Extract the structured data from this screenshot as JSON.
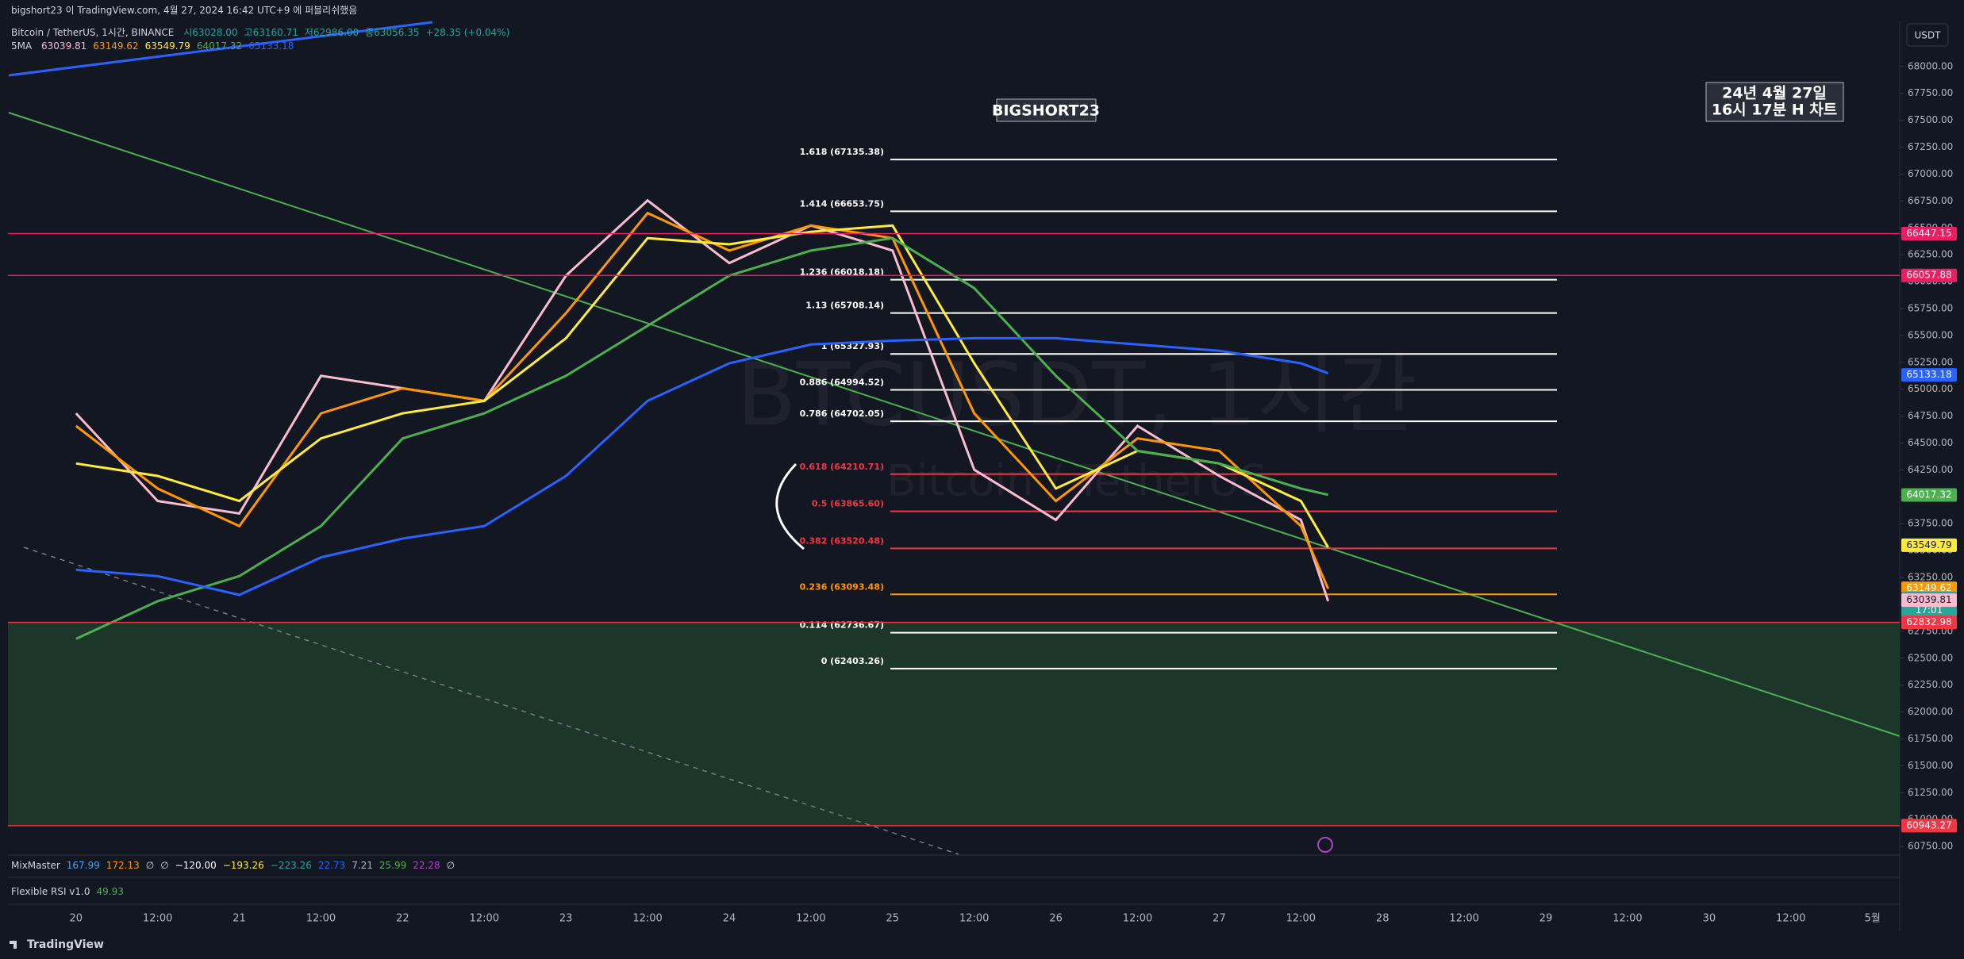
{
  "header": {
    "text": "bigshort23 이 TradingView.com, 4월 27, 2024 16:42 UTC+9 에 퍼블리쉬했음"
  },
  "legend": {
    "symbol": "Bitcoin / TetherUS, 1시간, BINANCE",
    "ohlc": [
      "시63028.00",
      "고63160.71",
      "저62986.00",
      "종63056.35"
    ],
    "change": "+28.35 (+0.04%)",
    "ma_name": "5MA"
  },
  "currency": "USDT",
  "chart_data": {
    "type": "line",
    "x": [
      0,
      12,
      24,
      36,
      48,
      60,
      72,
      84,
      96,
      108,
      120,
      132,
      144,
      156,
      168,
      180,
      184
    ],
    "xlim": [
      -10,
      268
    ],
    "xticks": [
      {
        "value": 0,
        "label": "20"
      },
      {
        "value": 12,
        "label": "12:00"
      },
      {
        "value": 24,
        "label": "21"
      },
      {
        "value": 36,
        "label": "12:00"
      },
      {
        "value": 48,
        "label": "22"
      },
      {
        "value": 60,
        "label": "12:00"
      },
      {
        "value": 72,
        "label": "23"
      },
      {
        "value": 84,
        "label": "12:00"
      },
      {
        "value": 96,
        "label": "24"
      },
      {
        "value": 108,
        "label": "12:00"
      },
      {
        "value": 120,
        "label": "25"
      },
      {
        "value": 132,
        "label": "12:00"
      },
      {
        "value": 144,
        "label": "26"
      },
      {
        "value": 156,
        "label": "12:00"
      },
      {
        "value": 168,
        "label": "27"
      },
      {
        "value": 180,
        "label": "12:00"
      },
      {
        "value": 192,
        "label": "28"
      },
      {
        "value": 204,
        "label": "12:00"
      },
      {
        "value": 216,
        "label": "29"
      },
      {
        "value": 228,
        "label": "12:00"
      },
      {
        "value": 240,
        "label": "30"
      },
      {
        "value": 252,
        "label": "12:00"
      },
      {
        "value": 264,
        "label": "5월"
      }
    ],
    "ylim": [
      60692,
      68419
    ],
    "yticks": [
      {
        "value": 68000,
        "label": "68000.00"
      },
      {
        "value": 67750,
        "label": "67750.00"
      },
      {
        "value": 67500,
        "label": "67500.00"
      },
      {
        "value": 67250,
        "label": "67250.00"
      },
      {
        "value": 67000,
        "label": "67000.00"
      },
      {
        "value": 66750,
        "label": "66750.00"
      },
      {
        "value": 66500,
        "label": "66500.00"
      },
      {
        "value": 66250,
        "label": "66250.00"
      },
      {
        "value": 66000,
        "label": "66000.00"
      },
      {
        "value": 65750,
        "label": "65750.00"
      },
      {
        "value": 65500,
        "label": "65500.00"
      },
      {
        "value": 65250,
        "label": "65250.00"
      },
      {
        "value": 65000,
        "label": "65000.00"
      },
      {
        "value": 64750,
        "label": "64750.00"
      },
      {
        "value": 64500,
        "label": "64500.00"
      },
      {
        "value": 64250,
        "label": "64250.00"
      },
      {
        "value": 64000,
        "label": "64000.00"
      },
      {
        "value": 63750,
        "label": "63750.00"
      },
      {
        "value": 63500,
        "label": "63500.00"
      },
      {
        "value": 63250,
        "label": "63250.00"
      },
      {
        "value": 63000,
        "label": "63000.00"
      },
      {
        "value": 62750,
        "label": "62750.00"
      },
      {
        "value": 62500,
        "label": "62500.00"
      },
      {
        "value": 62250,
        "label": "62250.00"
      },
      {
        "value": 62000,
        "label": "62000.00"
      },
      {
        "value": 61750,
        "label": "61750.00"
      },
      {
        "value": 61500,
        "label": "61500.00"
      },
      {
        "value": 61250,
        "label": "61250.00"
      },
      {
        "value": 61000,
        "label": "61000.00"
      },
      {
        "value": 60750,
        "label": "60750.00"
      }
    ],
    "series": [
      {
        "color": "#f8bbd0",
        "legend_value": 63039.81,
        "values": [
          64776,
          63961,
          63845,
          65125,
          65009,
          64892,
          66056,
          66755,
          66173,
          66522,
          66289,
          64252,
          63786,
          64659,
          64194,
          63786,
          63030
        ]
      },
      {
        "color": "#ff9800",
        "legend_value": 63149.62,
        "values": [
          64659,
          64077,
          63728,
          64776,
          65009,
          64892,
          65707,
          66638,
          66289,
          66522,
          66405,
          64776,
          63961,
          64543,
          64427,
          63728,
          63146
        ]
      },
      {
        "color": "#ffeb3b",
        "legend_value": 63549.79,
        "values": [
          64310,
          64194,
          63961,
          64543,
          64776,
          64892,
          65474,
          66405,
          66347,
          66464,
          66522,
          65241,
          64077,
          64427,
          64310,
          63961,
          63530
        ]
      },
      {
        "color": "#4caf50",
        "legend_value": 64017.32,
        "values": [
          62680,
          63030,
          63263,
          63728,
          64543,
          64776,
          65125,
          65590,
          66056,
          66289,
          66405,
          65940,
          65125,
          64427,
          64310,
          64077,
          64019
        ]
      },
      {
        "color": "#2962ff",
        "legend_value": 65133.18,
        "values": [
          63321,
          63263,
          63088,
          63437,
          63612,
          63728,
          64194,
          64892,
          65241,
          65416,
          65451,
          65474,
          65474,
          65416,
          65358,
          65241,
          65148
        ]
      }
    ]
  },
  "fib_levels": [
    {
      "label": "1.618 (67135.38)",
      "value": 67135.38,
      "color": "#ffffff"
    },
    {
      "label": "1.414 (66653.75)",
      "value": 66653.75,
      "color": "#ffffff"
    },
    {
      "label": "1.236 (66018.18)",
      "value": 66018.18,
      "color": "#ffffff"
    },
    {
      "label": "1.13 (65708.14)",
      "value": 65708.14,
      "color": "#ffffff"
    },
    {
      "label": "1 (65327.93)",
      "value": 65327.93,
      "color": "#ffffff"
    },
    {
      "label": "0.886 (64994.52)",
      "value": 64994.52,
      "color": "#ffffff"
    },
    {
      "label": "0.786 (64702.05)",
      "value": 64702.05,
      "color": "#ffffff"
    },
    {
      "label": "0.618 (64210.71)",
      "value": 64210.71,
      "color": "#f23645"
    },
    {
      "label": "0.5 (63865.60)",
      "value": 63865.6,
      "color": "#f23645"
    },
    {
      "label": "0.382 (63520.48)",
      "value": 63520.48,
      "color": "#f23645"
    },
    {
      "label": "0.236 (63093.48)",
      "value": 63093.48,
      "color": "#ff9800"
    },
    {
      "label": "0.114 (62736.67)",
      "value": 62736.67,
      "color": "#ffffff"
    },
    {
      "label": "0 (62403.26)",
      "value": 62403.26,
      "color": "#ffffff"
    }
  ],
  "price_lines": [
    {
      "value": 66447.15,
      "color": "#e91e63",
      "line": true
    },
    {
      "value": 66057.88,
      "color": "#e91e63",
      "line": true
    },
    {
      "value": 65133.18,
      "color": "#2962ff",
      "line": false
    },
    {
      "value": 64017.32,
      "color": "#4caf50",
      "line": false
    },
    {
      "value": 63549.79,
      "color": "#ffeb3b",
      "line": false
    },
    {
      "value": 63149.62,
      "color": "#ff9800",
      "line": false
    },
    {
      "value": 63056.35,
      "color": "#26a69a",
      "line": false,
      "countdown": "17:01"
    },
    {
      "value": 63039.81,
      "color": "#f8bbd0",
      "line": false
    },
    {
      "value": 62832.98,
      "color": "#f23645",
      "line": true
    },
    {
      "value": 60943.27,
      "color": "#f23645",
      "line": true
    }
  ],
  "zone": {
    "top": 62832.98,
    "bottom": 60943.27,
    "color": "#1f3a2b"
  },
  "annotations": {
    "tag": "BIGSHORT23",
    "date_box": [
      "24년 4월 27일",
      "16시 17분 H 차트"
    ],
    "watermark": [
      "BTCUSDT, 1시간",
      "Bitcoin / TetherUS"
    ]
  },
  "indicators": [
    {
      "name": "MixMaster",
      "values": [
        "167.99",
        "172.13",
        "∅",
        "∅",
        "−120.00",
        "−193.26",
        "−223.26",
        "22.73",
        "7.21",
        "25.99",
        "22.28",
        "∅"
      ],
      "colors": [
        "#42a5f5",
        "#ff9800",
        "#d1d4dc",
        "#d1d4dc",
        "#ffffff",
        "#ffeb3b",
        "#26a69a",
        "#2962ff",
        "#b2b5be",
        "#4caf50",
        "#ab47bc",
        "#d1d4dc"
      ]
    },
    {
      "name": "Flexible RSI v1.0",
      "values": [
        "49.93"
      ],
      "colors": [
        "#4caf50"
      ]
    }
  ],
  "footer": "TradingView"
}
